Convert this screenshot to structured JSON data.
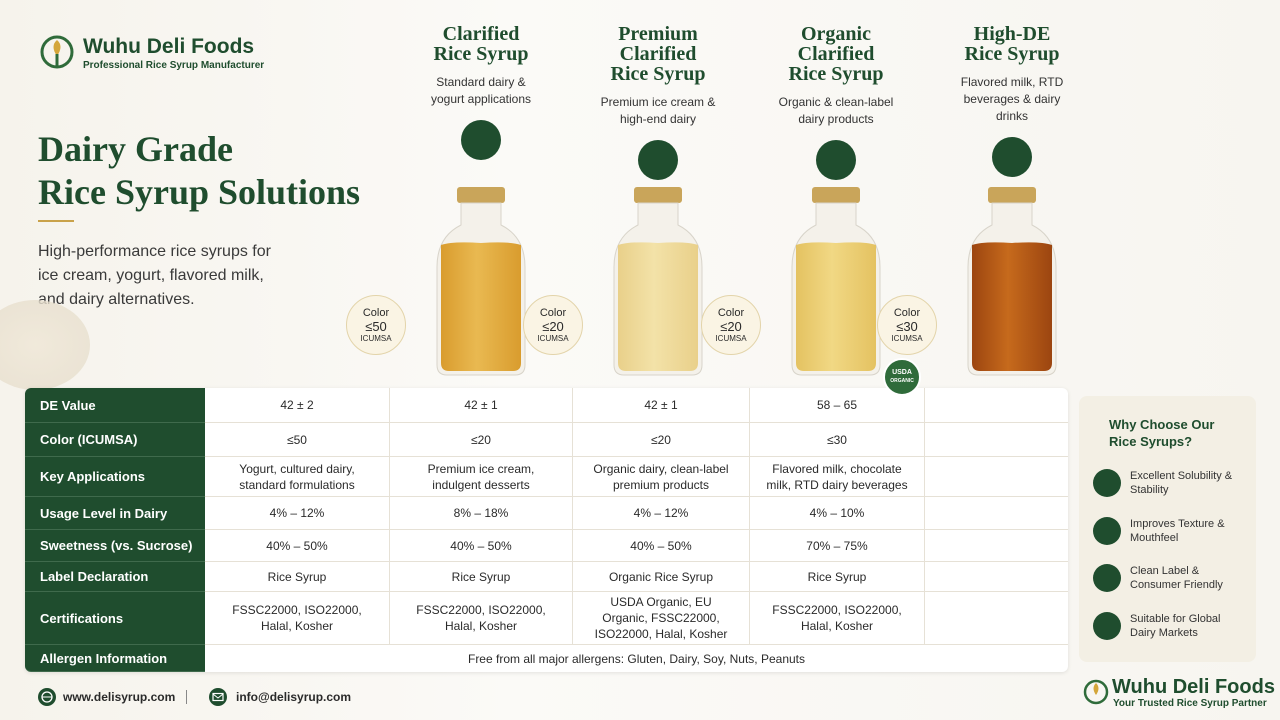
{
  "header": {
    "brand": "Wuhu Deli Foods",
    "tagline": "Professional Rice Syrup Manufacturer"
  },
  "hero": {
    "title_lines": [
      "Dairy Grade",
      "Rice Syrup Solutions"
    ],
    "description": "High-performance rice syrups for ice cream, yogurt, flavored milk, and dairy alternatives."
  },
  "products": [
    {
      "name_lines": [
        "Clarified",
        "Rice Syrup"
      ],
      "use": "Standard dairy & yogurt applications",
      "badge": {
        "label": "Color",
        "value": "≤50",
        "unit": "ICUMSA"
      }
    },
    {
      "name_lines": [
        "Premium",
        "Clarified",
        "Rice Syrup"
      ],
      "use": "Premium ice cream & high-end dairy",
      "badge": {
        "label": "Color",
        "value": "≤20",
        "unit": "ICUMSA"
      }
    },
    {
      "name_lines": [
        "Organic",
        "Clarified",
        "Rice Syrup"
      ],
      "use": "Organic & clean-label dairy products",
      "badge": {
        "label": "Color",
        "value": "≤20",
        "unit": "ICUMSA"
      }
    },
    {
      "name_lines": [
        "High-DE",
        "Rice Syrup"
      ],
      "use": "Flavored milk, RTD beverages & dairy drinks",
      "badge": {
        "label": "Color",
        "value": "≤30",
        "unit": "ICUMSA"
      }
    }
  ],
  "organic_seal": {
    "top": "USDA",
    "bottom": "ORGANIC"
  },
  "table": {
    "row_headers": [
      "DE Value",
      "Color (ICUMSA)",
      "Key Applications",
      "Usage Level in Dairy",
      "Sweetness (vs. Sucrose)",
      "Label Declaration",
      "Certifications",
      "Allergen Information"
    ],
    "rows": [
      [
        "42 ± 2",
        "42 ± 1",
        "42 ± 1",
        "58 – 65"
      ],
      [
        "≤50",
        "≤20",
        "≤20",
        "≤30"
      ],
      [
        "Yogurt, cultured dairy, standard formulations",
        "Premium ice cream, indulgent desserts",
        "Organic dairy, clean-label premium products",
        "Flavored milk, chocolate milk, RTD dairy beverages"
      ],
      [
        "4% – 12%",
        "8% – 18%",
        "4% – 12%",
        "4% – 10%"
      ],
      [
        "40% – 50%",
        "40% – 50%",
        "40% – 50%",
        "70% – 75%"
      ],
      [
        "Rice Syrup",
        "Rice Syrup",
        "Organic Rice Syrup",
        "Rice Syrup"
      ],
      [
        "FSSC22000, ISO22000, Halal, Kosher",
        "FSSC22000, ISO22000, Halal, Kosher",
        "USDA Organic, EU Organic, FSSC22000, ISO22000, Halal, Kosher",
        "FSSC22000, ISO22000, Halal, Kosher"
      ]
    ],
    "allergen_note": "Free from all major allergens: Gluten, Dairy, Soy, Nuts, Peanuts"
  },
  "sidebar": {
    "title": "Why Choose Our Rice Syrups?",
    "items": [
      "Excellent Solubility & Stability",
      "Improves Texture & Mouthfeel",
      "Clean Label & Consumer Friendly",
      "Suitable for Global Dairy Markets"
    ]
  },
  "footer": {
    "website": "www.delisyrup.com",
    "email": "info@delisyrup.com",
    "brand": "Wuhu Deli Foods",
    "tagline": "Your Trusted Rice Syrup Partner"
  }
}
